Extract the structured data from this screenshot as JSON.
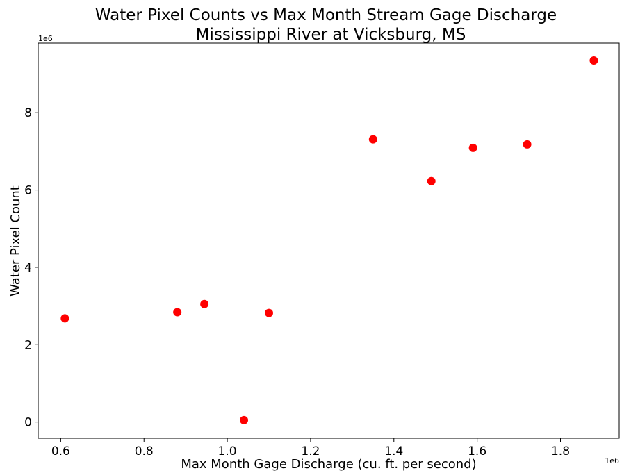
{
  "chart_data": {
    "type": "scatter",
    "title_line1": "Water Pixel Counts vs Max Month Stream Gage Discharge",
    "title_line2": "Mississippi River at Vicksburg, MS",
    "xlabel": "Max Month Gage Discharge (cu. ft. per second)",
    "ylabel": "Water Pixel Count",
    "x_offset_label": "1e6",
    "y_offset_label": "1e6",
    "xlim": [
      0.546,
      1.941
    ],
    "ylim": [
      -0.42,
      9.8
    ],
    "x_ticks": [
      0.6,
      0.8,
      1.0,
      1.2,
      1.4,
      1.6,
      1.8
    ],
    "x_tick_labels": [
      "0.6",
      "0.8",
      "1.0",
      "1.2",
      "1.4",
      "1.6",
      "1.8"
    ],
    "y_ticks": [
      0,
      2,
      4,
      6,
      8
    ],
    "y_tick_labels": [
      "0",
      "2",
      "4",
      "6",
      "8"
    ],
    "grid": false,
    "marker_color": "#ff0000",
    "x_scale": "1e6",
    "y_scale": "1e6",
    "points": [
      {
        "x": 0.61,
        "y": 2.68
      },
      {
        "x": 0.88,
        "y": 2.84
      },
      {
        "x": 0.945,
        "y": 3.05
      },
      {
        "x": 1.04,
        "y": 0.05
      },
      {
        "x": 1.1,
        "y": 2.82
      },
      {
        "x": 1.35,
        "y": 7.31
      },
      {
        "x": 1.49,
        "y": 6.23
      },
      {
        "x": 1.59,
        "y": 7.09
      },
      {
        "x": 1.72,
        "y": 7.18
      },
      {
        "x": 1.88,
        "y": 9.35
      }
    ]
  }
}
